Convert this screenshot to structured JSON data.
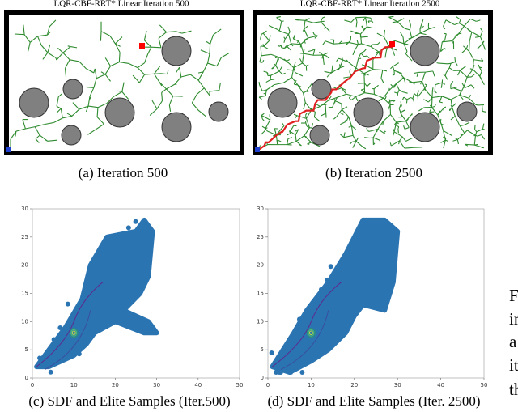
{
  "panels": [
    {
      "title": "LQR-CBF-RRT* Linear Iteration 500",
      "caption": "(a) Iteration 500"
    },
    {
      "title": "LQR-CBF-RRT* Linear Iteration 2500",
      "caption": "(b) Iteration 2500"
    },
    {
      "caption": "(c) SDF and Elite Samples (Iter.500)",
      "xlim": [
        0,
        50
      ],
      "ylim": [
        0,
        30
      ],
      "xticks": [
        0,
        10,
        20,
        30,
        40,
        50
      ],
      "yticks": [
        0,
        5,
        10,
        15,
        20,
        25,
        30
      ]
    },
    {
      "caption": "(d) SDF and Elite Samples (Iter. 2500)",
      "xlim": [
        0,
        50
      ],
      "ylim": [
        0,
        30
      ],
      "xticks": [
        0,
        10,
        20,
        30,
        40,
        50
      ],
      "yticks": [
        0,
        5,
        10,
        15,
        20,
        25,
        30
      ]
    }
  ],
  "side_text": [
    "F",
    "in",
    "a",
    "it",
    "th"
  ]
}
